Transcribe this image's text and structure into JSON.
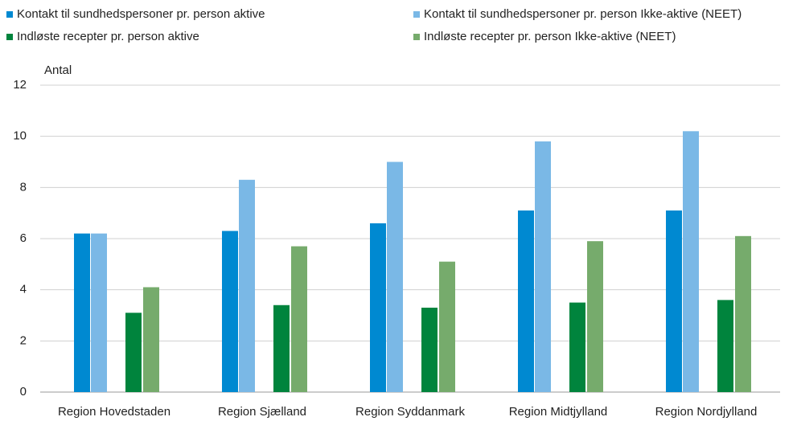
{
  "chart_data": {
    "type": "bar",
    "y_label": "Antal",
    "categories": [
      "Region Hovedstaden",
      "Region Sjælland",
      "Region Syddanmark",
      "Region Midtjylland",
      "Region Nordjylland"
    ],
    "series": [
      {
        "name": "Kontakt til sundhedspersoner pr. person aktive",
        "color": "#0089d1",
        "values": [
          6.2,
          6.3,
          6.6,
          7.1,
          7.1
        ]
      },
      {
        "name": "Kontakt til sundhedspersoner pr. person Ikke-aktive (NEET)",
        "color": "#7ab8e6",
        "values": [
          6.2,
          8.3,
          9.0,
          9.8,
          10.2
        ]
      },
      {
        "name": "Indløste recepter pr. person aktive",
        "color": "#00843d",
        "values": [
          3.1,
          3.4,
          3.3,
          3.5,
          3.6
        ]
      },
      {
        "name": "Indløste recepter pr. person Ikke-aktive (NEET)",
        "color": "#76ab6c",
        "values": [
          4.1,
          5.7,
          5.1,
          5.9,
          6.1
        ]
      }
    ],
    "ylim": [
      0,
      12
    ],
    "yticks": [
      0,
      2,
      4,
      6,
      8,
      10,
      12
    ],
    "grid": true
  }
}
